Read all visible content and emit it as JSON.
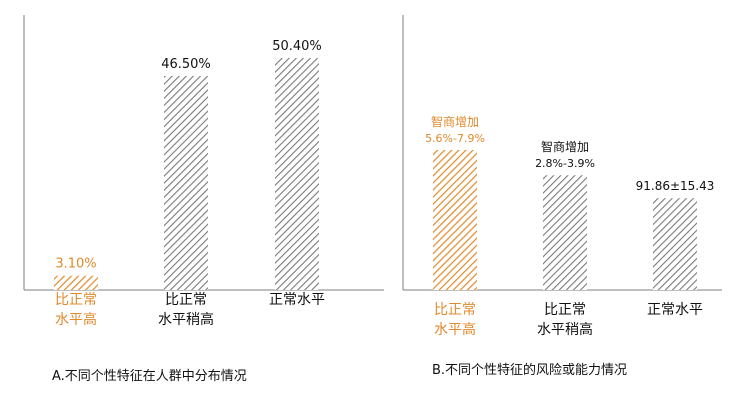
{
  "colors": {
    "accent": "#e08a2c",
    "gray_hatch": "#7a7a7a",
    "axis": "#7f7f7f",
    "text": "#111111"
  },
  "chart_data": [
    {
      "type": "bar",
      "title": "A.不同个性特征在人群中分布情况",
      "categories": [
        [
          "比正常",
          "水平高"
        ],
        [
          "比正常",
          "水平稍高"
        ],
        [
          "正常水平"
        ]
      ],
      "values": [
        3.1,
        46.5,
        50.4
      ],
      "value_labels": [
        "3.10%",
        "46.50%",
        "50.40%"
      ],
      "highlight_index": 0,
      "ylim": [
        0,
        58
      ],
      "grid": false,
      "legend": "none"
    },
    {
      "type": "bar",
      "title": "B.不同个性特征的风险或能力情况",
      "categories": [
        [
          "比正常",
          "水平高"
        ],
        [
          "比正常",
          "水平稍高"
        ],
        [
          "正常水平"
        ]
      ],
      "values": [
        122,
        100,
        80
      ],
      "bar_labels": [
        [
          "智商增加",
          "5.6%-7.9%"
        ],
        [
          "智商增加",
          "2.8%-3.9%"
        ],
        [
          "91.86±15.43"
        ]
      ],
      "highlight_index": 0,
      "grid": false,
      "legend": "none"
    }
  ]
}
